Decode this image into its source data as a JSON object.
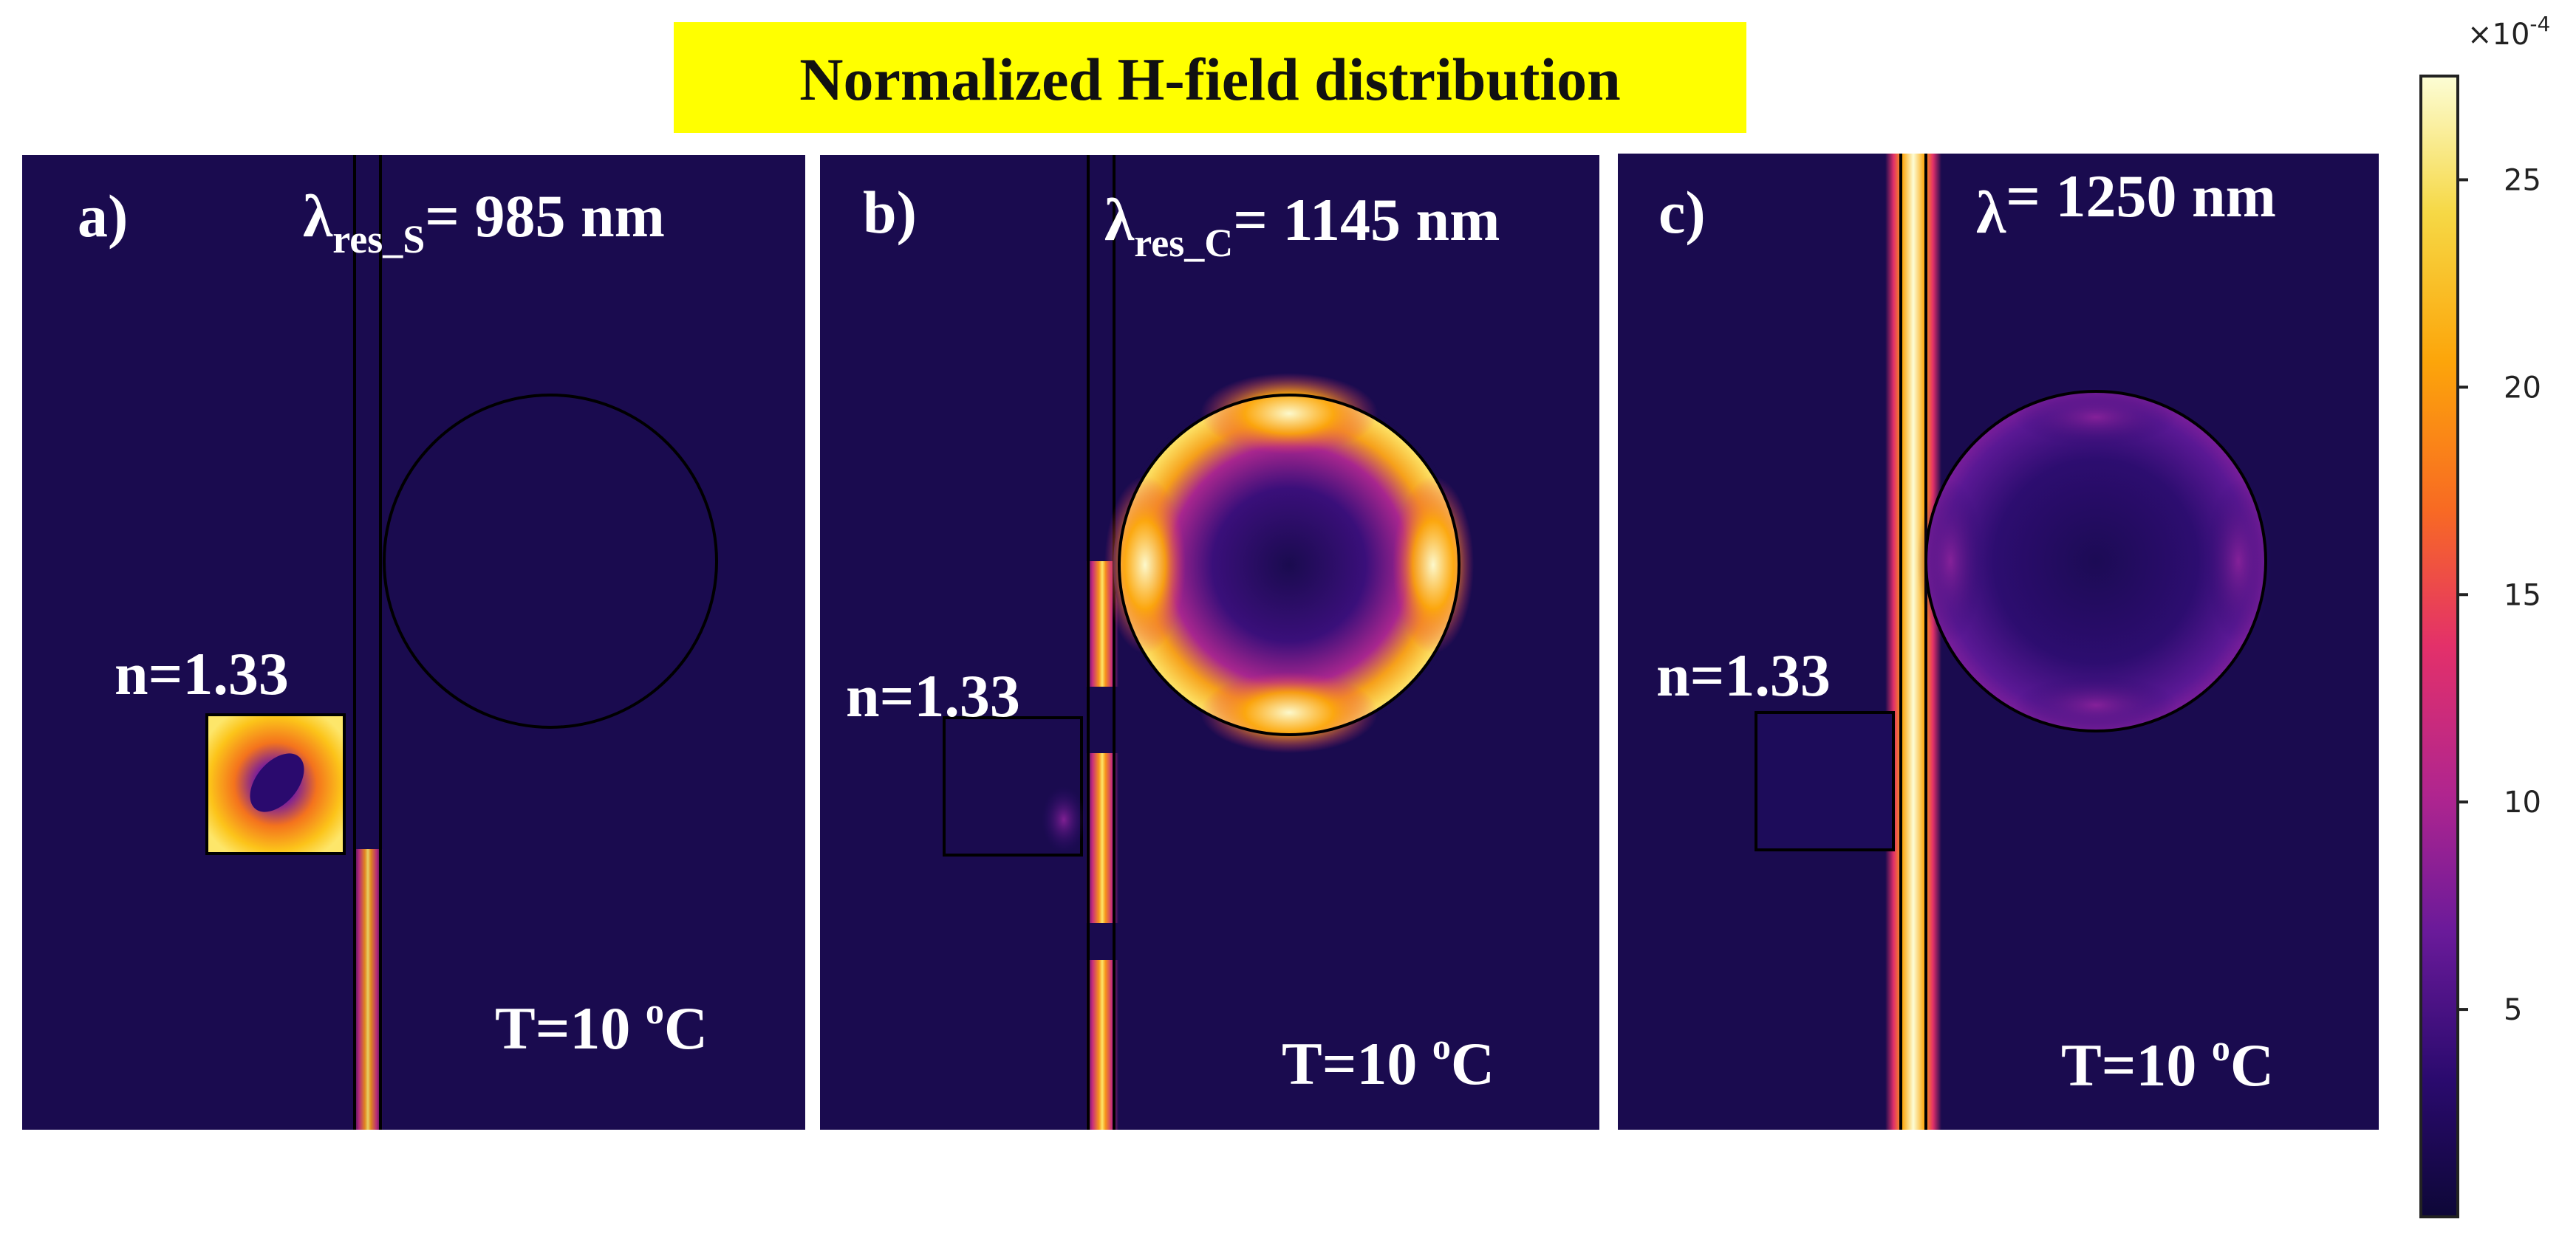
{
  "title": "Normalized H-field distribution",
  "colors": {
    "title_bg": "#ffff00",
    "background": "#1a0b4f",
    "outline": "#000000",
    "text": "#ffffff"
  },
  "panels": [
    {
      "label": "a)",
      "lambda_symbol": "λ",
      "lambda_subscript": "res_S",
      "lambda_value": "= 985 nm",
      "index_label": "n=1.33",
      "temp_main": "T=10 ",
      "temp_sup": "o",
      "temp_unit": "C"
    },
    {
      "label": "b)",
      "lambda_symbol": "λ",
      "lambda_subscript": "res_C",
      "lambda_value": "= 1145 nm",
      "index_label": "n=1.33",
      "temp_main": "T=10 ",
      "temp_sup": "o",
      "temp_unit": "C"
    },
    {
      "label": "c)",
      "lambda_symbol": "λ",
      "lambda_subscript": "",
      "lambda_value": "= 1250 nm",
      "index_label": "n=1.33",
      "temp_main": "T=10 ",
      "temp_sup": "o",
      "temp_unit": "C"
    }
  ],
  "colorbar": {
    "multiplier": "×10",
    "exponent": "-4",
    "ticks": [
      "25",
      "20",
      "15",
      "10",
      "5"
    ],
    "tick_values": [
      25,
      20,
      15,
      10,
      5
    ],
    "range": [
      0,
      27.5
    ],
    "colormap": [
      "#0d0737",
      "#2a0a6e",
      "#6a1a9a",
      "#b0258f",
      "#e3306a",
      "#f86a23",
      "#fca50a",
      "#f6d845",
      "#fcfdd5"
    ]
  }
}
